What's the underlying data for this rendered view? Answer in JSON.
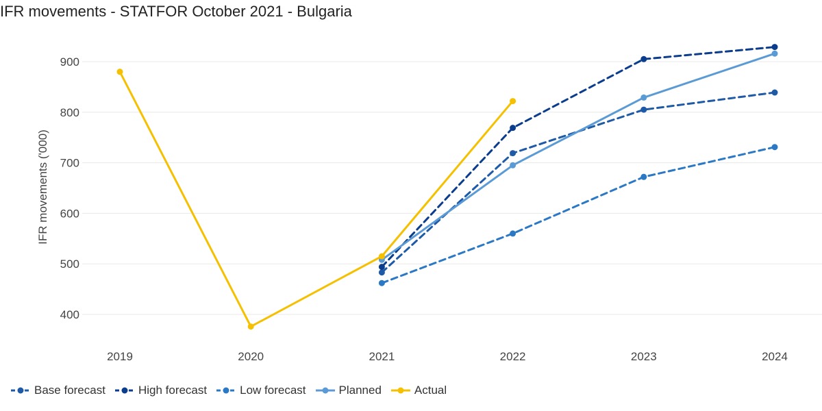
{
  "chart_data": {
    "type": "line",
    "title": "IFR movements - STATFOR October 2021 - Bulgaria",
    "xlabel": "",
    "ylabel": "IFR movements ('000)",
    "categories": [
      "2019",
      "2020",
      "2021",
      "2022",
      "2023",
      "2024"
    ],
    "ylim": [
      350,
      960
    ],
    "yticks": [
      400,
      500,
      600,
      700,
      800,
      900
    ],
    "grid": true,
    "legend_position": "bottom-left",
    "series": [
      {
        "name": "Base forecast",
        "color": "#1f5aa6",
        "dashed": true,
        "values": [
          null,
          null,
          483,
          719,
          805,
          839
        ]
      },
      {
        "name": "High forecast",
        "color": "#0b3d8c",
        "dashed": true,
        "values": [
          null,
          null,
          494,
          769,
          905,
          929
        ]
      },
      {
        "name": "Low forecast",
        "color": "#2b78c4",
        "dashed": true,
        "values": [
          null,
          null,
          462,
          560,
          672,
          731
        ]
      },
      {
        "name": "Planned",
        "color": "#5b9bd5",
        "dashed": false,
        "values": [
          null,
          null,
          508,
          695,
          829,
          916
        ]
      },
      {
        "name": "Actual",
        "color": "#f5c000",
        "dashed": false,
        "values": [
          880,
          376,
          515,
          822,
          null,
          null
        ]
      }
    ]
  }
}
